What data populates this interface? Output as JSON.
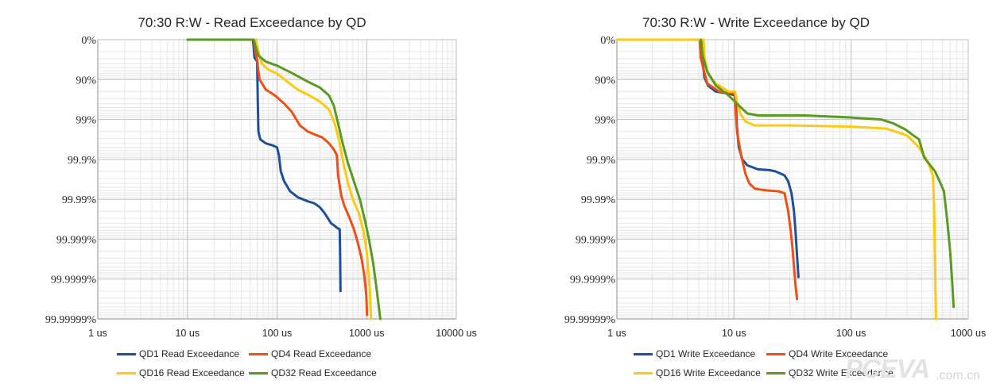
{
  "chart_data": [
    {
      "type": "line",
      "title": "70:30 R:W - Read Exceedance by QD",
      "xlabel": "",
      "ylabel": "",
      "x_scale": "log",
      "xlim": [
        1,
        10000
      ],
      "x_ticks": [
        "1 us",
        "10 us",
        "100 us",
        "1000 us",
        "10000 us"
      ],
      "y_scale": "exceedance (log nines)",
      "ylim": [
        "0%",
        "99.99999%"
      ],
      "y_ticks": [
        "0%",
        "90%",
        "99%",
        "99.9%",
        "99.99%",
        "99.999%",
        "99.9999%",
        "99.99999%"
      ],
      "grid": true,
      "legend": "bottom",
      "series": [
        {
          "name": "QD1 Read Exceedance",
          "color": "#1f4e9c",
          "points": [
            [
              54,
              0
            ],
            [
              56,
              0.45
            ],
            [
              58,
              0.5
            ],
            [
              60,
              0.55
            ],
            [
              61,
              1.6
            ],
            [
              62,
              2.3
            ],
            [
              65,
              2.5
            ],
            [
              75,
              2.6
            ],
            [
              90,
              2.65
            ],
            [
              100,
              2.7
            ],
            [
              105,
              2.9
            ],
            [
              110,
              3.3
            ],
            [
              120,
              3.55
            ],
            [
              140,
              3.8
            ],
            [
              170,
              3.95
            ],
            [
              220,
              4.05
            ],
            [
              260,
              4.1
            ],
            [
              300,
              4.2
            ],
            [
              340,
              4.35
            ],
            [
              400,
              4.6
            ],
            [
              430,
              4.65
            ],
            [
              470,
              4.72
            ],
            [
              500,
              4.75
            ],
            [
              505,
              5.3
            ],
            [
              510,
              6.3
            ]
          ]
        },
        {
          "name": "QD4 Read Exceedance",
          "color": "#f04e14",
          "points": [
            [
              55,
              0
            ],
            [
              57,
              0.3
            ],
            [
              60,
              0.5
            ],
            [
              62,
              0.8
            ],
            [
              64,
              1.0
            ],
            [
              75,
              1.25
            ],
            [
              95,
              1.4
            ],
            [
              120,
              1.6
            ],
            [
              145,
              1.8
            ],
            [
              180,
              2.15
            ],
            [
              220,
              2.3
            ],
            [
              280,
              2.4
            ],
            [
              320,
              2.45
            ],
            [
              380,
              2.6
            ],
            [
              430,
              2.75
            ],
            [
              465,
              2.9
            ],
            [
              480,
              3.4
            ],
            [
              520,
              3.9
            ],
            [
              560,
              4.15
            ],
            [
              640,
              4.45
            ],
            [
              720,
              4.75
            ],
            [
              800,
              5.1
            ],
            [
              880,
              5.5
            ],
            [
              940,
              5.9
            ],
            [
              990,
              6.4
            ],
            [
              1010,
              6.9
            ]
          ]
        },
        {
          "name": "QD16 Read Exceedance",
          "color": "#ffc90e",
          "points": [
            [
              58,
              0
            ],
            [
              62,
              0.3
            ],
            [
              68,
              0.6
            ],
            [
              80,
              0.75
            ],
            [
              100,
              0.85
            ],
            [
              130,
              1.05
            ],
            [
              170,
              1.25
            ],
            [
              230,
              1.4
            ],
            [
              300,
              1.55
            ],
            [
              380,
              1.75
            ],
            [
              440,
              2.1
            ],
            [
              490,
              2.5
            ],
            [
              550,
              3.1
            ],
            [
              620,
              3.6
            ],
            [
              700,
              4.0
            ],
            [
              820,
              4.35
            ],
            [
              920,
              4.8
            ],
            [
              1000,
              5.3
            ],
            [
              1080,
              6.2
            ],
            [
              1120,
              7.0
            ]
          ]
        },
        {
          "name": "QD32 Read Exceedance",
          "color": "#5a9a22",
          "points": [
            [
              10,
              0
            ],
            [
              55,
              0
            ],
            [
              58,
              0.2
            ],
            [
              62,
              0.4
            ],
            [
              75,
              0.55
            ],
            [
              100,
              0.65
            ],
            [
              150,
              0.85
            ],
            [
              220,
              1.05
            ],
            [
              300,
              1.2
            ],
            [
              380,
              1.4
            ],
            [
              430,
              1.65
            ],
            [
              480,
              2.1
            ],
            [
              540,
              2.6
            ],
            [
              620,
              3.1
            ],
            [
              720,
              3.55
            ],
            [
              840,
              4.0
            ],
            [
              960,
              4.55
            ],
            [
              1060,
              5.0
            ],
            [
              1180,
              5.6
            ],
            [
              1300,
              6.3
            ],
            [
              1420,
              7.0
            ]
          ]
        }
      ]
    },
    {
      "type": "line",
      "title": "70:30 R:W - Write Exceedance by QD",
      "xlabel": "",
      "ylabel": "",
      "x_scale": "log",
      "xlim": [
        1,
        1000
      ],
      "x_ticks": [
        "1 us",
        "10 us",
        "100 us",
        "1000 us"
      ],
      "y_scale": "exceedance (log nines)",
      "ylim": [
        "0%",
        "99.99999%"
      ],
      "y_ticks": [
        "0%",
        "90%",
        "99%",
        "99.9%",
        "99.99%",
        "99.999%",
        "99.9999%",
        "99.99999%"
      ],
      "grid": true,
      "legend": "bottom",
      "series": [
        {
          "name": "QD1 Write Exceedance",
          "color": "#1f4e9c",
          "points": [
            [
              5.3,
              0
            ],
            [
              5.4,
              0.55
            ],
            [
              5.6,
              0.95
            ],
            [
              6.0,
              1.15
            ],
            [
              7.0,
              1.3
            ],
            [
              9.0,
              1.35
            ],
            [
              10.3,
              1.4
            ],
            [
              10.6,
              2.2
            ],
            [
              11.0,
              2.7
            ],
            [
              11.8,
              3.0
            ],
            [
              13.0,
              3.15
            ],
            [
              16.0,
              3.25
            ],
            [
              20.0,
              3.27
            ],
            [
              22.5,
              3.3
            ],
            [
              27.0,
              3.4
            ],
            [
              29.0,
              3.55
            ],
            [
              31.0,
              3.85
            ],
            [
              32.5,
              4.3
            ],
            [
              33.5,
              4.8
            ],
            [
              34.5,
              5.4
            ],
            [
              35.5,
              5.95
            ]
          ]
        },
        {
          "name": "QD4 Write Exceedance",
          "color": "#f04e14",
          "points": [
            [
              5.1,
              0
            ],
            [
              5.2,
              0.45
            ],
            [
              5.5,
              0.75
            ],
            [
              5.9,
              1.1
            ],
            [
              7.5,
              1.3
            ],
            [
              10.1,
              1.35
            ],
            [
              10.6,
              2.3
            ],
            [
              11.5,
              2.9
            ],
            [
              12.5,
              3.35
            ],
            [
              13.5,
              3.6
            ],
            [
              15.0,
              3.73
            ],
            [
              18.0,
              3.77
            ],
            [
              24.0,
              3.8
            ],
            [
              27.0,
              3.85
            ],
            [
              29.0,
              4.3
            ],
            [
              30.5,
              4.8
            ],
            [
              31.5,
              5.2
            ],
            [
              32.5,
              5.7
            ],
            [
              33.5,
              6.15
            ],
            [
              34.5,
              6.5
            ]
          ]
        },
        {
          "name": "QD16 Write Exceedance",
          "color": "#ffc90e",
          "points": [
            [
              1,
              0
            ],
            [
              5.5,
              0
            ],
            [
              5.6,
              0.45
            ],
            [
              6.0,
              0.85
            ],
            [
              7.0,
              1.1
            ],
            [
              9.0,
              1.3
            ],
            [
              10.2,
              1.3
            ],
            [
              10.6,
              1.55
            ],
            [
              11.3,
              1.85
            ],
            [
              12.5,
              2.05
            ],
            [
              15.0,
              2.15
            ],
            [
              30.0,
              2.15
            ],
            [
              100.0,
              2.18
            ],
            [
              200.0,
              2.23
            ],
            [
              300.0,
              2.4
            ],
            [
              380.0,
              2.7
            ],
            [
              450.0,
              3.05
            ],
            [
              500.0,
              3.4
            ],
            [
              510.0,
              4.1
            ],
            [
              515.0,
              4.7
            ],
            [
              520.0,
              5.5
            ],
            [
              525.0,
              6.3
            ],
            [
              530.0,
              7.0
            ]
          ]
        },
        {
          "name": "QD32 Write Exceedance",
          "color": "#5a9a22",
          "points": [
            [
              5.2,
              0
            ],
            [
              5.4,
              0.4
            ],
            [
              5.9,
              0.8
            ],
            [
              7.0,
              1.15
            ],
            [
              9.0,
              1.4
            ],
            [
              11.0,
              1.65
            ],
            [
              13.0,
              1.85
            ],
            [
              16.0,
              1.9
            ],
            [
              40.0,
              1.9
            ],
            [
              100.0,
              1.95
            ],
            [
              180.0,
              2.0
            ],
            [
              230.0,
              2.1
            ],
            [
              290.0,
              2.25
            ],
            [
              340.0,
              2.4
            ],
            [
              380.0,
              2.5
            ],
            [
              420.0,
              2.95
            ],
            [
              460.0,
              3.1
            ],
            [
              520.0,
              3.3
            ],
            [
              580.0,
              3.6
            ],
            [
              620.0,
              3.8
            ],
            [
              660.0,
              4.5
            ],
            [
              700.0,
              5.3
            ],
            [
              730.0,
              6.1
            ],
            [
              750.0,
              6.7
            ]
          ]
        }
      ]
    }
  ],
  "watermark": {
    "brand": "PCEVA",
    "domain": ".com.cn"
  }
}
